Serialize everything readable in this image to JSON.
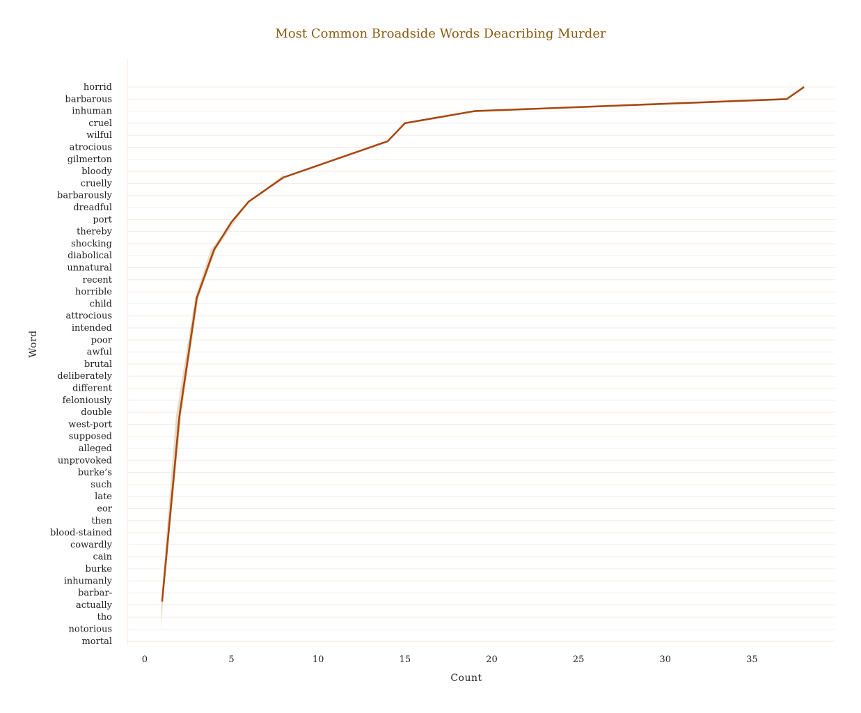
{
  "chart_data": {
    "type": "line",
    "title": "Most Common Broadside Words Deacribing Murder",
    "xlabel": "Count",
    "ylabel": "Word",
    "xlim": [
      -1,
      39.8
    ],
    "xticks": [
      0,
      5,
      10,
      15,
      20,
      25,
      30,
      35
    ],
    "grid": "horizontal",
    "colors": {
      "line": "#a9470f",
      "band": "#e6d9c2",
      "title": "#8a5a12",
      "grid": "#f6ebe4"
    },
    "categories": [
      "horrid",
      "barbarous",
      "inhuman",
      "cruel",
      "wilful",
      "atrocious",
      "gilmerton",
      "bloody",
      "cruelly",
      "barbarously",
      "dreadful",
      "port",
      "thereby",
      "shocking",
      "diabolical",
      "unnatural",
      "recent",
      "horrible",
      "child",
      "attrocious",
      "intended",
      "poor",
      "awful",
      "brutal",
      "deliberately",
      "different",
      "feloniously",
      "double",
      "west-port",
      "supposed",
      "alleged",
      "unprovoked",
      "burke’s",
      "such",
      "late",
      "eor",
      "then",
      "blood-stained",
      "cowardly",
      "cain",
      "burke",
      "inhumanly",
      "barbar-",
      "actually",
      "tho",
      "notorious",
      "mortal"
    ],
    "series": [
      {
        "points": [
          {
            "x": 38,
            "y": 0
          },
          {
            "x": 37,
            "y": 1
          },
          {
            "x": 19,
            "y": 2
          },
          {
            "x": 15,
            "y": 3
          },
          {
            "x": 14,
            "y": 4.5
          },
          {
            "x": 8,
            "y": 7.5
          },
          {
            "x": 6,
            "y": 9.5
          },
          {
            "x": 5,
            "y": 11.2
          },
          {
            "x": 4,
            "y": 13.5
          },
          {
            "x": 3,
            "y": 17.5
          },
          {
            "x": 2,
            "y": 27.3
          },
          {
            "x": 1,
            "y": 42.7
          }
        ],
        "band": [
          {
            "y": 7.2,
            "lo": 8,
            "hi": 8
          },
          {
            "y": 7.5,
            "lo": 7.8,
            "hi": 8
          },
          {
            "y": 9.5,
            "lo": 6,
            "hi": 6
          },
          {
            "y": 13.5,
            "lo": 3.8,
            "hi": 4.1
          },
          {
            "y": 17.5,
            "lo": 2.9,
            "hi": 3.1
          },
          {
            "y": 27.3,
            "lo": 1.8,
            "hi": 2.1
          },
          {
            "y": 42.7,
            "lo": 0.95,
            "hi": 1.05
          },
          {
            "y": 45,
            "lo": 0.95,
            "hi": 0.95
          }
        ]
      }
    ]
  }
}
